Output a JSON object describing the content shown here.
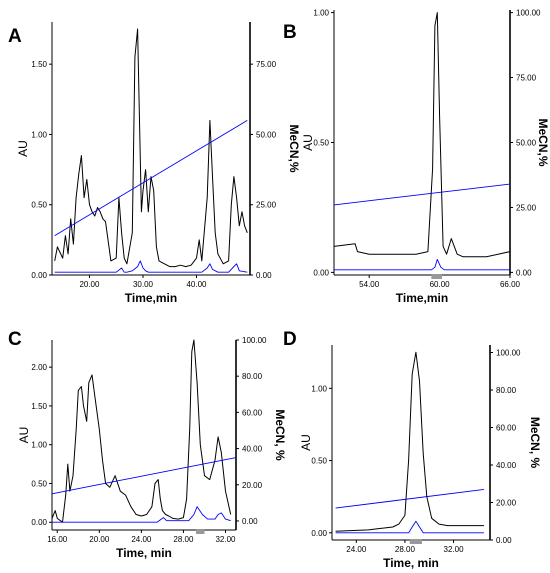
{
  "chart_data": [
    {
      "panel": "A",
      "type": "line",
      "xlabel": "Time,min",
      "ylabel": "AU",
      "y2label": "MeCN,%",
      "xlim": [
        13,
        50
      ],
      "ylim": [
        0,
        1.8
      ],
      "y2lim": [
        0,
        90
      ],
      "xticks": [
        "20.00",
        "30.00",
        "40.00"
      ],
      "yticks": [
        "0.00",
        "0.50",
        "1.00",
        "1.50"
      ],
      "y2ticks": [
        "0.00",
        "25.00",
        "50.00",
        "75.00"
      ],
      "series": [
        {
          "color": "#000000",
          "x": [
            13.5,
            14,
            15,
            15.5,
            16,
            16.5,
            17,
            17.5,
            18,
            18.5,
            19,
            19.5,
            20,
            20.5,
            21,
            21.5,
            22,
            22.5,
            23,
            24,
            25,
            25.5,
            26,
            26.5,
            27,
            28,
            28.5,
            29,
            29.3,
            29.7,
            30,
            30.5,
            31,
            31.5,
            32,
            32.5,
            33,
            34,
            35,
            36,
            37,
            38,
            39,
            40,
            40.5,
            41,
            42,
            42.5,
            43,
            43.5,
            44,
            45,
            46,
            46.5,
            47,
            47.5,
            48,
            48.5,
            49,
            49.5
          ],
          "y": [
            0.1,
            0.2,
            0.12,
            0.28,
            0.15,
            0.4,
            0.22,
            0.55,
            0.72,
            0.85,
            0.55,
            0.68,
            0.5,
            0.45,
            0.42,
            0.48,
            0.45,
            0.4,
            0.38,
            0.1,
            0.12,
            0.55,
            0.3,
            0.12,
            0.08,
            0.3,
            1.55,
            1.75,
            1.2,
            0.45,
            0.6,
            0.75,
            0.45,
            0.7,
            0.6,
            0.2,
            0.1,
            0.08,
            0.06,
            0.06,
            0.07,
            0.06,
            0.07,
            0.12,
            0.25,
            0.1,
            0.55,
            1.1,
            0.7,
            0.3,
            0.15,
            0.08,
            0.1,
            0.5,
            0.7,
            0.55,
            0.35,
            0.45,
            0.35,
            0.3
          ]
        },
        {
          "color": "#0000ff",
          "x": [
            13.5,
            25,
            26,
            26.5,
            27,
            28,
            29,
            29.5,
            30,
            30.5,
            31,
            32,
            41,
            42,
            42.5,
            43,
            44,
            46,
            47,
            47.5,
            48,
            49.5
          ],
          "y": [
            0.02,
            0.02,
            0.05,
            0.02,
            0.02,
            0.03,
            0.06,
            0.1,
            0.05,
            0.03,
            0.02,
            0.02,
            0.02,
            0.05,
            0.08,
            0.04,
            0.02,
            0.02,
            0.06,
            0.08,
            0.03,
            0.02
          ]
        },
        {
          "color": "#0000ff",
          "axis": "y2",
          "x": [
            13.5,
            49.5
          ],
          "y": [
            14,
            55
          ]
        }
      ]
    },
    {
      "panel": "B",
      "type": "line",
      "xlabel": "Time,min",
      "ylabel": "AU",
      "y2label": "MeCN,%",
      "xlim": [
        51,
        66
      ],
      "ylim": [
        -0.01,
        1.01
      ],
      "y2lim": [
        -1,
        101
      ],
      "xticks": [
        "54.00",
        "60.00",
        "66.00"
      ],
      "yticks": [
        "0.00",
        "0.50",
        "1.00"
      ],
      "y2ticks": [
        "0.00",
        "25.00",
        "50.00",
        "75.00",
        "100.00"
      ],
      "series": [
        {
          "color": "#000000",
          "x": [
            51,
            52.8,
            53,
            54,
            55,
            56,
            57,
            58,
            59,
            59.4,
            59.6,
            59.8,
            60,
            60.3,
            60.6,
            61,
            61.5,
            62,
            64,
            66
          ],
          "y": [
            0.1,
            0.11,
            0.08,
            0.07,
            0.07,
            0.07,
            0.07,
            0.07,
            0.08,
            0.4,
            0.95,
            1.0,
            0.6,
            0.1,
            0.07,
            0.13,
            0.07,
            0.06,
            0.06,
            0.08
          ]
        },
        {
          "color": "#0000ff",
          "x": [
            51,
            59.3,
            59.6,
            59.8,
            60.1,
            60.4,
            66
          ],
          "y": [
            0.01,
            0.01,
            0.02,
            0.05,
            0.02,
            0.01,
            0.01
          ]
        },
        {
          "color": "#0000ff",
          "axis": "y2",
          "x": [
            51,
            66
          ],
          "y": [
            26,
            34
          ]
        }
      ],
      "fraction_marker": [
        59.3,
        60.2
      ]
    },
    {
      "panel": "C",
      "type": "line",
      "xlabel": "Time, min",
      "ylabel": "AU",
      "y2label": "MeCN, %",
      "xlim": [
        15.5,
        33
      ],
      "ylim": [
        -0.1,
        2.35
      ],
      "y2lim": [
        -5,
        100
      ],
      "xticks": [
        "16.00",
        "20.00",
        "24.00",
        "28.00",
        "32.00"
      ],
      "yticks": [
        "0.00",
        "0.50",
        "1.00",
        "1.50",
        "2.00"
      ],
      "y2ticks": [
        "0.00",
        "20.00",
        "40.00",
        "60.00",
        "80.00",
        "100.00"
      ],
      "series": [
        {
          "color": "#000000",
          "x": [
            15.5,
            15.8,
            16,
            16.5,
            16.8,
            17,
            17.2,
            17.5,
            17.8,
            18,
            18.3,
            18.5,
            18.8,
            19,
            19.3,
            19.6,
            20,
            20.3,
            20.6,
            21,
            21.5,
            22,
            22.5,
            23,
            23.5,
            24,
            24.5,
            25,
            25.3,
            25.6,
            25.8,
            26,
            26.3,
            26.6,
            27,
            27.5,
            28,
            28.3,
            28.6,
            28.8,
            29,
            29.3,
            29.6,
            30,
            30.5,
            31,
            31.3,
            31.6,
            32,
            32.5
          ],
          "y": [
            0.05,
            0.15,
            0.05,
            0.0,
            0.35,
            0.75,
            0.4,
            0.6,
            1.2,
            1.7,
            1.75,
            1.5,
            1.3,
            1.8,
            1.9,
            1.6,
            1.2,
            0.8,
            0.5,
            0.45,
            0.6,
            0.4,
            0.35,
            0.2,
            0.1,
            0.08,
            0.1,
            0.2,
            0.5,
            0.55,
            0.3,
            0.15,
            0.1,
            0.08,
            0.05,
            0.04,
            0.06,
            0.3,
            1.2,
            2.2,
            2.35,
            1.8,
            1.0,
            0.6,
            0.55,
            0.8,
            1.1,
            0.9,
            0.4,
            0.1
          ]
        },
        {
          "color": "#0000ff",
          "x": [
            15.5,
            25.5,
            25.8,
            26.1,
            26.4,
            28.5,
            29,
            29.3,
            29.8,
            30.3,
            31,
            31.3,
            31.6,
            32,
            32.5
          ],
          "y": [
            0.0,
            0.0,
            0.03,
            0.06,
            0.02,
            0.02,
            0.1,
            0.2,
            0.1,
            0.04,
            0.04,
            0.1,
            0.12,
            0.04,
            0.02
          ]
        },
        {
          "color": "#0000ff",
          "axis": "y2",
          "x": [
            15.5,
            33
          ],
          "y": [
            15,
            35
          ]
        }
      ],
      "fraction_marker": [
        29.2,
        30
      ]
    },
    {
      "panel": "D",
      "type": "line",
      "xlabel": "Time, min",
      "ylabel": "AU",
      "y2label": "MeCN, %",
      "xlim": [
        22,
        35
      ],
      "ylim": [
        -0.05,
        1.3
      ],
      "y2lim": [
        0,
        104
      ],
      "xticks": [
        "24.00",
        "28.00",
        "32.00"
      ],
      "yticks": [
        "0.00",
        "0.50",
        "1.00"
      ],
      "y2ticks": [
        "0.00",
        "20.00",
        "40.00",
        "60.00",
        "80.00",
        "100.00"
      ],
      "series": [
        {
          "color": "#000000",
          "x": [
            22.3,
            25,
            26,
            27,
            27.5,
            28,
            28.3,
            28.6,
            28.9,
            29.2,
            29.5,
            29.8,
            30.2,
            30.8,
            31.5,
            34.5
          ],
          "y": [
            0.01,
            0.02,
            0.03,
            0.04,
            0.06,
            0.12,
            0.5,
            1.1,
            1.25,
            1.05,
            0.55,
            0.25,
            0.1,
            0.06,
            0.05,
            0.05
          ]
        },
        {
          "color": "#0000ff",
          "x": [
            22.3,
            28.3,
            28.6,
            28.9,
            29.2,
            29.5,
            34.5
          ],
          "y": [
            0.0,
            0.0,
            0.04,
            0.08,
            0.04,
            0.0,
            0.0
          ]
        },
        {
          "color": "#0000ff",
          "axis": "y2",
          "x": [
            22.3,
            34.5
          ],
          "y": [
            17,
            27
          ]
        }
      ],
      "fraction_marker": [
        28.4,
        29.4
      ]
    }
  ]
}
